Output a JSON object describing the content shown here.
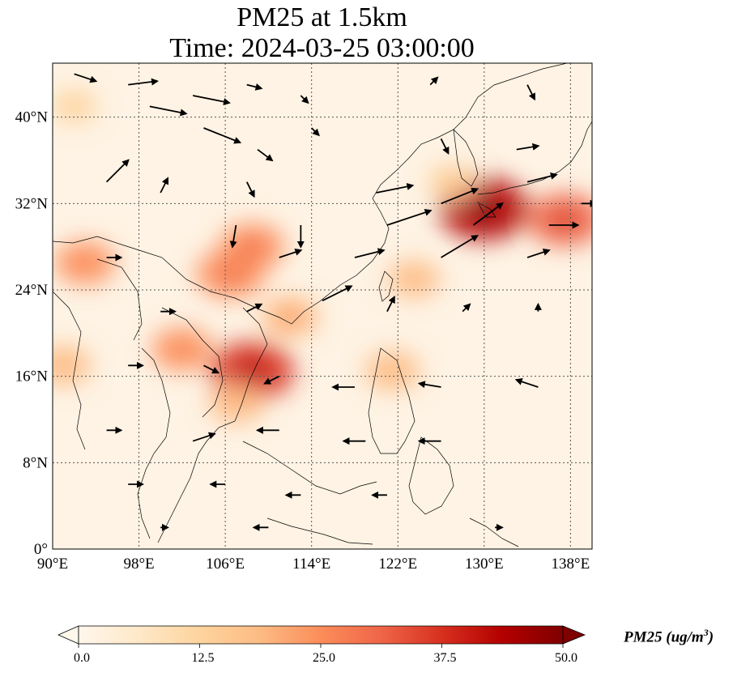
{
  "title": {
    "line1": "PM25 at 1.5km",
    "line2": "Time: 2024-03-25 03:00:00"
  },
  "map": {
    "lon_range": [
      90,
      140
    ],
    "lat_range": [
      0,
      45
    ],
    "lon_ticks": [
      90,
      98,
      106,
      114,
      122,
      130,
      138
    ],
    "lon_tick_labels": [
      "90°E",
      "98°E",
      "106°E",
      "114°E",
      "122°E",
      "130°E",
      "138°E"
    ],
    "lat_ticks": [
      0,
      8,
      16,
      24,
      32,
      40
    ],
    "lat_tick_labels": [
      "0°",
      "8°N",
      "16°N",
      "24°N",
      "32°N",
      "40°N"
    ],
    "gridlines": "dotted"
  },
  "colorbar": {
    "label": "PM25 (ug/m",
    "label_sup": "3",
    "label_end": ")",
    "min": 0,
    "max": 50,
    "ticks": [
      0.0,
      12.5,
      25.0,
      37.5,
      50.0
    ],
    "tick_labels": [
      "0.0",
      "12.5",
      "25.0",
      "37.5",
      "50.0"
    ],
    "colormap": "OrRd",
    "colors": [
      "#fff7ec",
      "#fee8c8",
      "#fdd49e",
      "#fdbb84",
      "#fc8d59",
      "#ef6548",
      "#d7301f",
      "#b30000",
      "#7f0000"
    ],
    "extend": "both"
  },
  "chart_data": {
    "type": "heatmap",
    "variable": "PM25",
    "level": "1.5km",
    "time": "2024-03-25 03:00:00",
    "units": "ug/m3",
    "value_range": [
      0,
      50
    ],
    "hotspots": [
      {
        "lon": 108.5,
        "lat": 16.5,
        "value": 38
      },
      {
        "lon": 130.0,
        "lat": 31.5,
        "value": 42
      },
      {
        "lon": 137.5,
        "lat": 30.5,
        "value": 32
      },
      {
        "lon": 106.5,
        "lat": 25.5,
        "value": 28
      },
      {
        "lon": 108.5,
        "lat": 28.0,
        "value": 25
      },
      {
        "lon": 102.0,
        "lat": 18.5,
        "value": 22
      },
      {
        "lon": 93.0,
        "lat": 26.5,
        "value": 22
      },
      {
        "lon": 91.0,
        "lat": 17.0,
        "value": 18
      },
      {
        "lon": 112.0,
        "lat": 21.5,
        "value": 20
      },
      {
        "lon": 121.5,
        "lat": 16.5,
        "value": 18
      },
      {
        "lon": 123.5,
        "lat": 25.0,
        "value": 16
      },
      {
        "lon": 127.0,
        "lat": 34.0,
        "value": 14
      },
      {
        "lon": 107.0,
        "lat": 13.5,
        "value": 18
      },
      {
        "lon": 92.0,
        "lat": 41.0,
        "value": 12
      }
    ],
    "wind_vectors": [
      {
        "lon": 92,
        "lat": 44,
        "u": 3,
        "v": -1
      },
      {
        "lon": 97,
        "lat": 43,
        "u": 4,
        "v": 0.5
      },
      {
        "lon": 103,
        "lat": 42,
        "u": 5,
        "v": -1
      },
      {
        "lon": 108,
        "lat": 43,
        "u": 2,
        "v": -0.5
      },
      {
        "lon": 113,
        "lat": 42,
        "u": 1,
        "v": -1
      },
      {
        "lon": 125,
        "lat": 43,
        "u": 1,
        "v": 1
      },
      {
        "lon": 134,
        "lat": 43,
        "u": 1,
        "v": -2
      },
      {
        "lon": 99,
        "lat": 41,
        "u": 5,
        "v": -1
      },
      {
        "lon": 104,
        "lat": 39,
        "u": 5,
        "v": -2
      },
      {
        "lon": 109,
        "lat": 37,
        "u": 2,
        "v": -1.5
      },
      {
        "lon": 114,
        "lat": 39,
        "u": 1,
        "v": -1
      },
      {
        "lon": 126,
        "lat": 38,
        "u": 1,
        "v": -2
      },
      {
        "lon": 133,
        "lat": 37,
        "u": 3,
        "v": 0.5
      },
      {
        "lon": 95,
        "lat": 34,
        "u": 3,
        "v": 3
      },
      {
        "lon": 100,
        "lat": 33,
        "u": 1,
        "v": 2
      },
      {
        "lon": 108,
        "lat": 34,
        "u": 1,
        "v": -2
      },
      {
        "lon": 120,
        "lat": 33,
        "u": 5,
        "v": 1
      },
      {
        "lon": 126,
        "lat": 32,
        "u": 5,
        "v": 2
      },
      {
        "lon": 134,
        "lat": 34,
        "u": 4,
        "v": 1
      },
      {
        "lon": 139,
        "lat": 32,
        "u": 2,
        "v": 0
      },
      {
        "lon": 107,
        "lat": 30,
        "u": -0.5,
        "v": -3
      },
      {
        "lon": 113,
        "lat": 30,
        "u": 0,
        "v": -3
      },
      {
        "lon": 121,
        "lat": 30,
        "u": 6,
        "v": 2
      },
      {
        "lon": 129,
        "lat": 30,
        "u": 4,
        "v": 3
      },
      {
        "lon": 136,
        "lat": 30,
        "u": 4,
        "v": 0
      },
      {
        "lon": 95,
        "lat": 27,
        "u": 2,
        "v": 0
      },
      {
        "lon": 111,
        "lat": 27,
        "u": 3,
        "v": 1
      },
      {
        "lon": 118,
        "lat": 27,
        "u": 4,
        "v": 1
      },
      {
        "lon": 126,
        "lat": 27,
        "u": 5,
        "v": 3
      },
      {
        "lon": 134,
        "lat": 27,
        "u": 3,
        "v": 1
      },
      {
        "lon": 100,
        "lat": 22,
        "u": 2,
        "v": 0
      },
      {
        "lon": 108,
        "lat": 22,
        "u": 2,
        "v": 1
      },
      {
        "lon": 115,
        "lat": 23,
        "u": 4,
        "v": 2
      },
      {
        "lon": 121,
        "lat": 22,
        "u": 1,
        "v": 2
      },
      {
        "lon": 128,
        "lat": 22,
        "u": 1,
        "v": 1
      },
      {
        "lon": 135,
        "lat": 22,
        "u": 0,
        "v": 1
      },
      {
        "lon": 97,
        "lat": 17,
        "u": 2,
        "v": 0
      },
      {
        "lon": 104,
        "lat": 17,
        "u": 2,
        "v": -1
      },
      {
        "lon": 111,
        "lat": 16,
        "u": -2,
        "v": -1
      },
      {
        "lon": 118,
        "lat": 15,
        "u": -3,
        "v": 0
      },
      {
        "lon": 126,
        "lat": 15,
        "u": -3,
        "v": 0.5
      },
      {
        "lon": 135,
        "lat": 15,
        "u": -3,
        "v": 1
      },
      {
        "lon": 95,
        "lat": 11,
        "u": 2,
        "v": 0
      },
      {
        "lon": 103,
        "lat": 10,
        "u": 3,
        "v": 1
      },
      {
        "lon": 111,
        "lat": 11,
        "u": -3,
        "v": 0
      },
      {
        "lon": 119,
        "lat": 10,
        "u": -3,
        "v": 0
      },
      {
        "lon": 126,
        "lat": 10,
        "u": -3,
        "v": 0
      },
      {
        "lon": 97,
        "lat": 6,
        "u": 2,
        "v": 0
      },
      {
        "lon": 106,
        "lat": 6,
        "u": -2,
        "v": 0
      },
      {
        "lon": 113,
        "lat": 5,
        "u": -2,
        "v": 0
      },
      {
        "lon": 121,
        "lat": 5,
        "u": -2,
        "v": 0
      },
      {
        "lon": 131,
        "lat": 2,
        "u": 1,
        "v": 0
      },
      {
        "lon": 100,
        "lat": 2,
        "u": 1,
        "v": 0
      },
      {
        "lon": 110,
        "lat": 2,
        "u": -2,
        "v": 0
      }
    ]
  }
}
